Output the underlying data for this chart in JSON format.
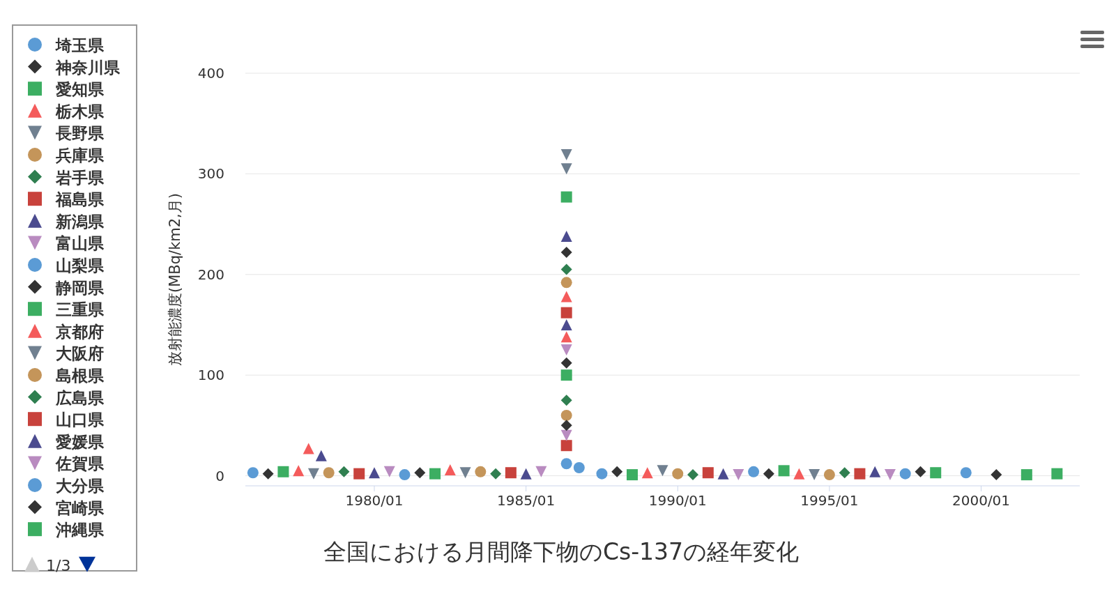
{
  "chart_data": {
    "type": "scatter",
    "title": "全国における月間降下物のCs-137の経年変化",
    "ylabel": "放射能濃度(MBq/km2,月)",
    "xlim": [
      "1975-10",
      "2003-04"
    ],
    "xticks": [
      {
        "value": "1980-01",
        "label": "1980/01"
      },
      {
        "value": "1985-01",
        "label": "1985/01"
      },
      {
        "value": "1990-01",
        "label": "1990/01"
      },
      {
        "value": "1995-01",
        "label": "1995/01"
      },
      {
        "value": "2000-01",
        "label": "2000/01"
      }
    ],
    "ylim": [
      -10,
      400
    ],
    "yticks": [
      0,
      100,
      200,
      300,
      400
    ],
    "grid": "y",
    "legend": "left",
    "annotations": [
      "1/3"
    ],
    "series": [
      {
        "name": "埼玉県",
        "color": "#5b9bd5",
        "marker": "circle",
        "x": [
          "1976-01",
          "1986-05",
          "1987-07"
        ],
        "values": [
          3,
          12,
          2
        ]
      },
      {
        "name": "神奈川県",
        "color": "#333333",
        "marker": "diamond",
        "x": [
          "1976-07",
          "1986-05",
          "1988-01"
        ],
        "values": [
          2,
          222,
          4
        ]
      },
      {
        "name": "愛知県",
        "color": "#3cae62",
        "marker": "square",
        "x": [
          "1977-01",
          "1986-05",
          "1988-07"
        ],
        "values": [
          4,
          277,
          1
        ]
      },
      {
        "name": "栃木県",
        "color": "#f45b5b",
        "marker": "triangle",
        "x": [
          "1977-07",
          "1977-11",
          "1986-05",
          "1989-01"
        ],
        "values": [
          5,
          27,
          178,
          3
        ]
      },
      {
        "name": "長野県",
        "color": "#708090",
        "marker": "triangle-down",
        "x": [
          "1978-01",
          "1986-05",
          "1989-07"
        ],
        "values": [
          2,
          319,
          5
        ]
      },
      {
        "name": "兵庫県",
        "color": "#c4955a",
        "marker": "circle",
        "x": [
          "1978-07",
          "1986-05",
          "1990-01"
        ],
        "values": [
          3,
          192,
          2
        ]
      },
      {
        "name": "岩手県",
        "color": "#2f7f50",
        "marker": "diamond",
        "x": [
          "1979-01",
          "1986-05",
          "1990-07"
        ],
        "values": [
          4,
          205,
          1
        ]
      },
      {
        "name": "福島県",
        "color": "#c8423c",
        "marker": "square",
        "x": [
          "1979-07",
          "1986-05",
          "1991-01"
        ],
        "values": [
          2,
          162,
          3
        ]
      },
      {
        "name": "新潟県",
        "color": "#4b4b8f",
        "marker": "triangle",
        "x": [
          "1978-04",
          "1980-01",
          "1986-05",
          "1991-07"
        ],
        "values": [
          20,
          3,
          238,
          2
        ]
      },
      {
        "name": "富山県",
        "color": "#b98bc0",
        "marker": "triangle-down",
        "x": [
          "1980-07",
          "1986-05",
          "1992-01"
        ],
        "values": [
          4,
          125,
          1
        ]
      },
      {
        "name": "山梨県",
        "color": "#5b9bd5",
        "marker": "circle",
        "x": [
          "1981-01",
          "1986-10",
          "1992-07"
        ],
        "values": [
          1,
          8,
          4
        ]
      },
      {
        "name": "静岡県",
        "color": "#333333",
        "marker": "diamond",
        "x": [
          "1981-07",
          "1986-05",
          "1993-01"
        ],
        "values": [
          3,
          112,
          2
        ]
      },
      {
        "name": "三重県",
        "color": "#3cae62",
        "marker": "square",
        "x": [
          "1982-01",
          "1986-05",
          "1993-07"
        ],
        "values": [
          2,
          100,
          5
        ]
      },
      {
        "name": "京都府",
        "color": "#f45b5b",
        "marker": "triangle",
        "x": [
          "1982-07",
          "1986-05",
          "1994-01"
        ],
        "values": [
          6,
          138,
          2
        ]
      },
      {
        "name": "大阪府",
        "color": "#708090",
        "marker": "triangle-down",
        "x": [
          "1983-01",
          "1986-05",
          "1994-07"
        ],
        "values": [
          3,
          305,
          1
        ]
      },
      {
        "name": "島根県",
        "color": "#c4955a",
        "marker": "circle",
        "x": [
          "1983-07",
          "1986-05",
          "1995-01"
        ],
        "values": [
          4,
          60,
          1
        ]
      },
      {
        "name": "広島県",
        "color": "#2f7f50",
        "marker": "diamond",
        "x": [
          "1984-01",
          "1986-05",
          "1995-07"
        ],
        "values": [
          2,
          75,
          3
        ]
      },
      {
        "name": "山口県",
        "color": "#c8423c",
        "marker": "square",
        "x": [
          "1984-07",
          "1986-05",
          "1996-01"
        ],
        "values": [
          3,
          30,
          2
        ]
      },
      {
        "name": "愛媛県",
        "color": "#4b4b8f",
        "marker": "triangle",
        "x": [
          "1985-01",
          "1986-05",
          "1996-07"
        ],
        "values": [
          2,
          150,
          4
        ]
      },
      {
        "name": "佐賀県",
        "color": "#b98bc0",
        "marker": "triangle-down",
        "x": [
          "1985-07",
          "1986-05",
          "1997-01"
        ],
        "values": [
          4,
          40,
          1
        ]
      },
      {
        "name": "大分県",
        "color": "#5b9bd5",
        "marker": "circle",
        "x": [
          "1997-07",
          "1999-07"
        ],
        "values": [
          2,
          3
        ]
      },
      {
        "name": "宮崎県",
        "color": "#333333",
        "marker": "diamond",
        "x": [
          "1986-05",
          "1998-01",
          "2000-07"
        ],
        "values": [
          50,
          4,
          1
        ]
      },
      {
        "name": "沖縄県",
        "color": "#3cae62",
        "marker": "square",
        "x": [
          "1998-07",
          "2001-07",
          "2002-07"
        ],
        "values": [
          3,
          1,
          2
        ]
      }
    ]
  }
}
